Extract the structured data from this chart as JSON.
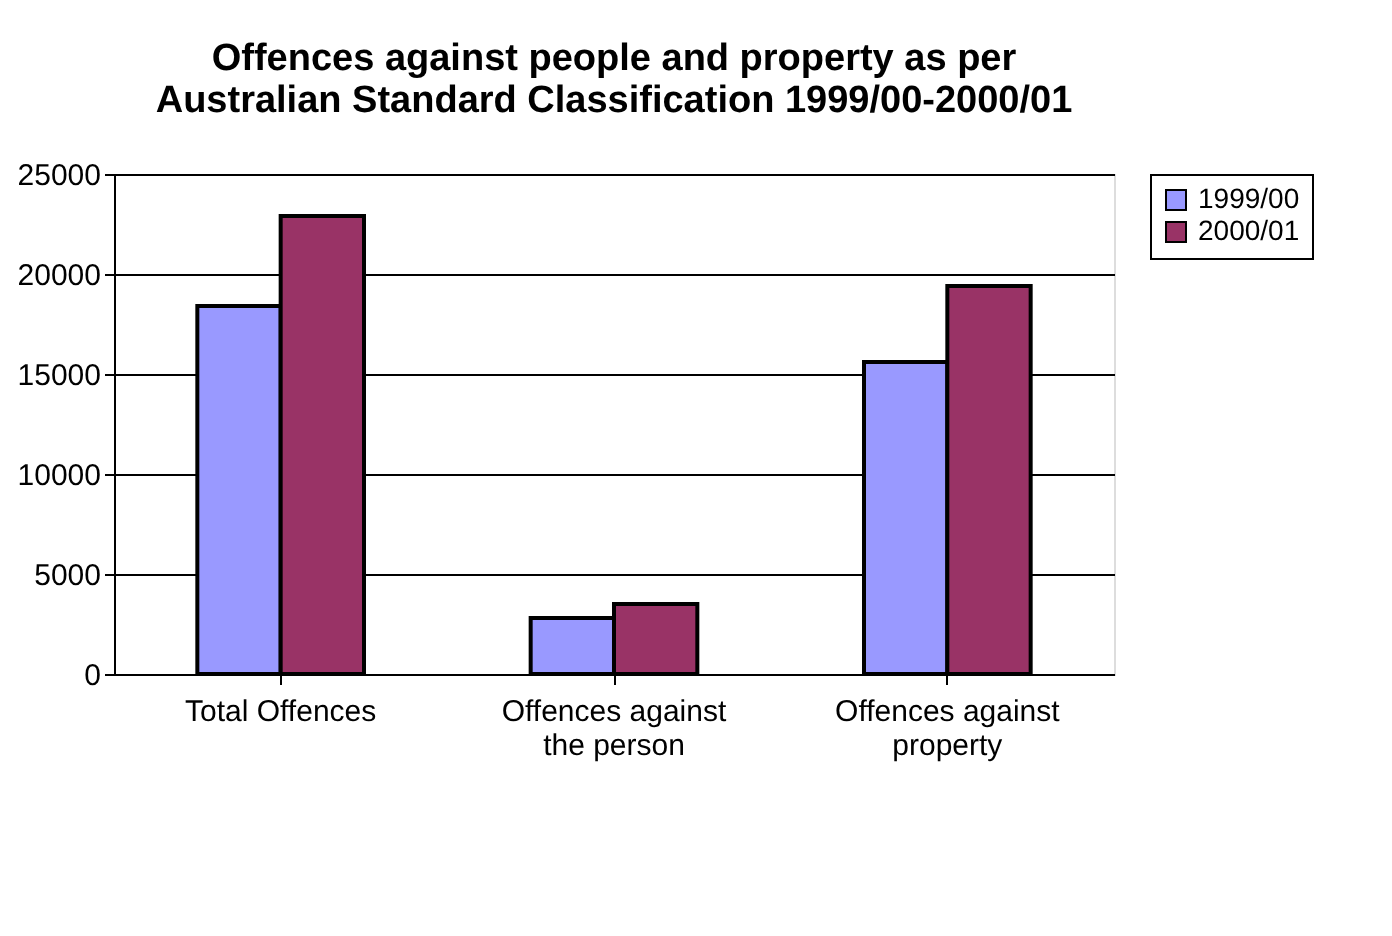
{
  "chart_data": {
    "type": "bar",
    "title": "Offences against people and property as per Australian Standard Classification 1999/00-2000/01",
    "categories": [
      "Total Offences",
      "Offences against the person",
      "Offences against property"
    ],
    "series": [
      {
        "name": "1999/00",
        "color": "#9999ff",
        "values": [
          18400,
          2800,
          15600
        ]
      },
      {
        "name": "2000/01",
        "color": "#993366",
        "values": [
          22900,
          3500,
          19400
        ]
      }
    ],
    "ylim": [
      0,
      25000
    ],
    "yticks": [
      0,
      5000,
      10000,
      15000,
      20000,
      25000
    ],
    "grid": "y",
    "legend": "right"
  }
}
